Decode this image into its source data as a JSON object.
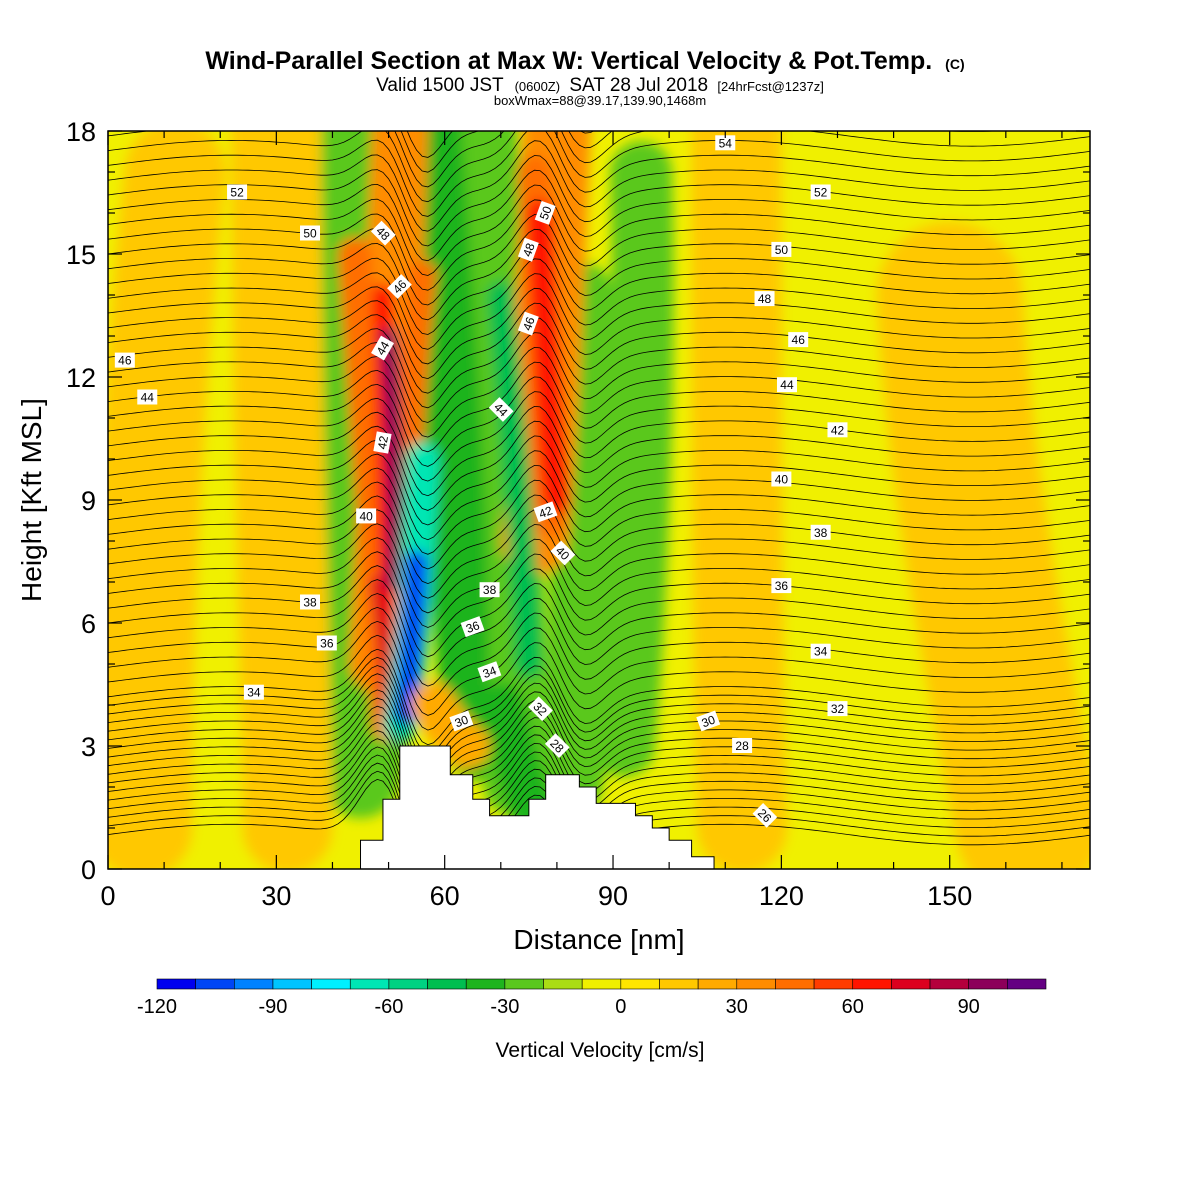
{
  "chart_data": {
    "type": "heatmap",
    "title": "Wind-Parallel Section at Max W: Vertical Velocity & Pot.Temp.",
    "title_mark": "(C)",
    "subtitle_1_parts": [
      "Valid 1500 JST",
      "(0600Z)",
      "SAT 28 Jul 2018",
      "[24hrFcst@1237z]"
    ],
    "subtitle_2": "boxWmax=88@39.17,139.90,1468m",
    "xlabel": "Distance [nm]",
    "ylabel": "Height [Kft MSL]",
    "xlim": [
      0,
      175
    ],
    "ylim": [
      0,
      18
    ],
    "x_ticks": [
      "0",
      "30",
      "60",
      "90",
      "120",
      "150"
    ],
    "x_tick_values": [
      0,
      30,
      60,
      90,
      120,
      150
    ],
    "y_ticks": [
      "0",
      "3",
      "6",
      "9",
      "12",
      "15",
      "18"
    ],
    "y_tick_values": [
      0,
      3,
      6,
      9,
      12,
      15,
      18
    ],
    "colorbar": {
      "label": "Vertical Velocity [cm/s]",
      "range": [
        -120,
        110
      ],
      "step": 10,
      "tick_labels": [
        "-120",
        "-90",
        "-60",
        "-30",
        "0",
        "30",
        "60",
        "90"
      ],
      "tick_values": [
        -120,
        -90,
        -60,
        -30,
        0,
        30,
        60,
        90
      ],
      "colors": [
        "#0000f0",
        "#0046f5",
        "#0082ff",
        "#00c4ff",
        "#00f0ff",
        "#00e6b4",
        "#00d282",
        "#00be50",
        "#1eb41e",
        "#5ac81e",
        "#aadc14",
        "#f0f000",
        "#ffe600",
        "#ffc800",
        "#ffaa00",
        "#ff8c00",
        "#ff6e00",
        "#ff3c00",
        "#ff1400",
        "#dc001e",
        "#b4003c",
        "#8c005a",
        "#640082"
      ]
    },
    "terrain": [
      [
        45,
        0
      ],
      [
        45,
        0.7
      ],
      [
        49,
        0.7
      ],
      [
        49,
        1.7
      ],
      [
        52,
        1.7
      ],
      [
        52,
        3.0
      ],
      [
        61,
        3.0
      ],
      [
        61,
        2.3
      ],
      [
        65,
        2.3
      ],
      [
        65,
        1.7
      ],
      [
        68,
        1.7
      ],
      [
        68,
        1.3
      ],
      [
        75,
        1.3
      ],
      [
        75,
        1.7
      ],
      [
        78,
        1.7
      ],
      [
        78,
        2.3
      ],
      [
        84,
        2.3
      ],
      [
        84,
        2.0
      ],
      [
        87,
        2.0
      ],
      [
        87,
        1.6
      ],
      [
        94,
        1.6
      ],
      [
        94,
        1.3
      ],
      [
        97,
        1.3
      ],
      [
        97,
        1.0
      ],
      [
        100,
        1.0
      ],
      [
        100,
        0.7
      ],
      [
        104,
        0.7
      ],
      [
        104,
        0.3
      ],
      [
        108,
        0.3
      ],
      [
        108,
        0
      ]
    ],
    "theta_levels": [
      26,
      28,
      30,
      32,
      34,
      36,
      38,
      40,
      42,
      44,
      46,
      48,
      50,
      52,
      54
    ],
    "contour_labels": [
      {
        "text": "52",
        "x": 23,
        "y": 16.5,
        "angle": 0
      },
      {
        "text": "50",
        "x": 36,
        "y": 15.5,
        "angle": 0
      },
      {
        "text": "46",
        "x": 3,
        "y": 12.4,
        "angle": 0
      },
      {
        "text": "44",
        "x": 7,
        "y": 11.5,
        "angle": 0
      },
      {
        "text": "48",
        "x": 49,
        "y": 15.5,
        "angle": -45
      },
      {
        "text": "46",
        "x": 52,
        "y": 14.2,
        "angle": 45
      },
      {
        "text": "44",
        "x": 49,
        "y": 12.7,
        "angle": 60
      },
      {
        "text": "42",
        "x": 49,
        "y": 10.4,
        "angle": 80
      },
      {
        "text": "40",
        "x": 46,
        "y": 8.6,
        "angle": 0
      },
      {
        "text": "38",
        "x": 36,
        "y": 6.5,
        "angle": 0
      },
      {
        "text": "36",
        "x": 39,
        "y": 5.5,
        "angle": 0
      },
      {
        "text": "34",
        "x": 26,
        "y": 4.3,
        "angle": 0
      },
      {
        "text": "50",
        "x": 78,
        "y": 16.0,
        "angle": 70
      },
      {
        "text": "48",
        "x": 75,
        "y": 15.1,
        "angle": 70
      },
      {
        "text": "46",
        "x": 75,
        "y": 13.3,
        "angle": 70
      },
      {
        "text": "44",
        "x": 70,
        "y": 11.2,
        "angle": -45
      },
      {
        "text": "42",
        "x": 78,
        "y": 8.7,
        "angle": 20
      },
      {
        "text": "40",
        "x": 81,
        "y": 7.7,
        "angle": -45
      },
      {
        "text": "38",
        "x": 68,
        "y": 6.8,
        "angle": 0
      },
      {
        "text": "36",
        "x": 65,
        "y": 5.9,
        "angle": 20
      },
      {
        "text": "34",
        "x": 68,
        "y": 4.8,
        "angle": 20
      },
      {
        "text": "32",
        "x": 77,
        "y": 3.9,
        "angle": -45
      },
      {
        "text": "30",
        "x": 63,
        "y": 3.6,
        "angle": 20
      },
      {
        "text": "28",
        "x": 80,
        "y": 3.0,
        "angle": -45
      },
      {
        "text": "54",
        "x": 110,
        "y": 17.7,
        "angle": 0
      },
      {
        "text": "52",
        "x": 127,
        "y": 16.5,
        "angle": 0
      },
      {
        "text": "50",
        "x": 120,
        "y": 15.1,
        "angle": 0
      },
      {
        "text": "48",
        "x": 117,
        "y": 13.9,
        "angle": 0
      },
      {
        "text": "46",
        "x": 123,
        "y": 12.9,
        "angle": 0
      },
      {
        "text": "44",
        "x": 121,
        "y": 11.8,
        "angle": 0
      },
      {
        "text": "42",
        "x": 130,
        "y": 10.7,
        "angle": 0
      },
      {
        "text": "40",
        "x": 120,
        "y": 9.5,
        "angle": 0
      },
      {
        "text": "38",
        "x": 127,
        "y": 8.2,
        "angle": 0
      },
      {
        "text": "36",
        "x": 120,
        "y": 6.9,
        "angle": 0
      },
      {
        "text": "34",
        "x": 127,
        "y": 5.3,
        "angle": 0
      },
      {
        "text": "32",
        "x": 130,
        "y": 3.9,
        "angle": 0
      },
      {
        "text": "30",
        "x": 107,
        "y": 3.6,
        "angle": 20
      },
      {
        "text": "28",
        "x": 113,
        "y": 3.0,
        "angle": 0
      },
      {
        "text": "26",
        "x": 117,
        "y": 1.3,
        "angle": -45
      }
    ]
  }
}
